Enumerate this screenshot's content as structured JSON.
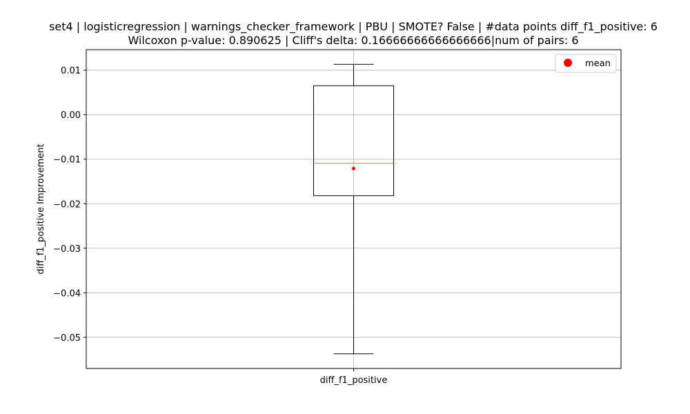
{
  "chart_data": {
    "type": "box",
    "title_line1": "set4 | logisticregression | warnings_checker_framework | PBU | SMOTE? False | #data points diff_f1_positive: 6",
    "title_line2": "Wilcoxon p-value: 0.890625 | Cliff's delta: 0.16666666666666666|num of pairs: 6",
    "xlabel": "",
    "ylabel": "diff_f1_positive Improvement",
    "categories": [
      "diff_f1_positive"
    ],
    "ylim": [
      -0.057,
      0.0146
    ],
    "yticks": [
      0.01,
      0.0,
      -0.01,
      -0.02,
      -0.03,
      -0.04,
      -0.05
    ],
    "ytick_labels": [
      "0.01",
      "0.00",
      "−0.01",
      "−0.02",
      "−0.03",
      "−0.04",
      "−0.05"
    ],
    "grid": true,
    "legend": {
      "position": "top-right",
      "entries": [
        {
          "label": "mean",
          "color": "#ff0000",
          "marker": "circle"
        }
      ]
    },
    "box": {
      "whisker_low": -0.0537,
      "q1": -0.0182,
      "median": -0.0109,
      "q3": 0.0065,
      "whisker_high": 0.0113,
      "mean": -0.0121
    },
    "colors": {
      "box": "#000000",
      "median": "#ff7f0e",
      "mean": "#ff0000",
      "grid": "#b0b0b0"
    }
  }
}
